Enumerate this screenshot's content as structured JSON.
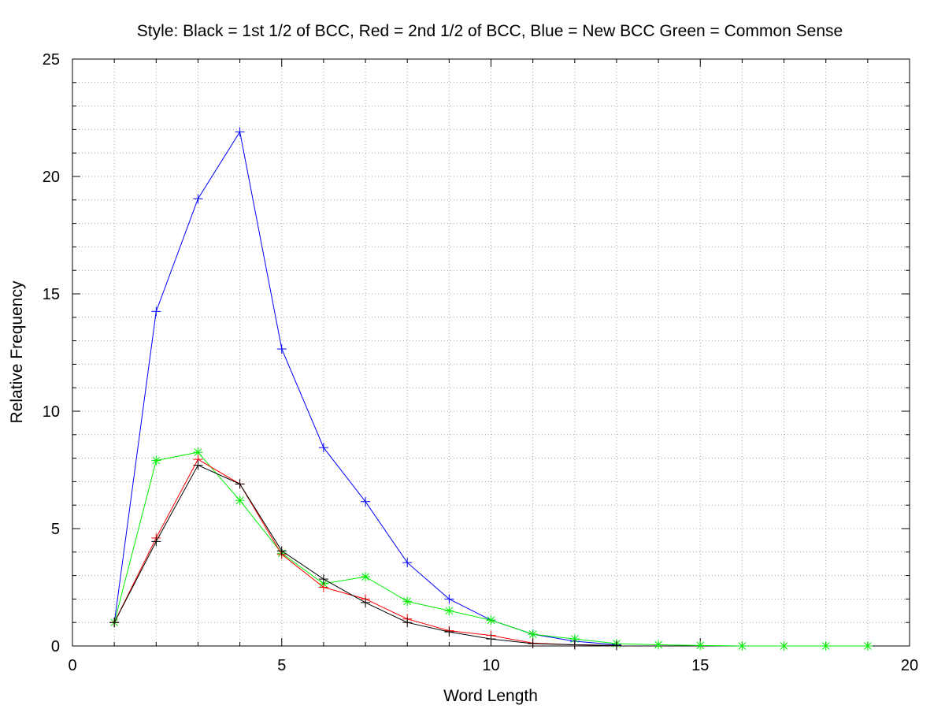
{
  "chart_data": {
    "type": "line",
    "title": "Style: Black = 1st 1/2 of BCC, Red = 2nd 1/2 of BCC, Blue = New BCC Green = Common Sense",
    "xlabel": "Word Length",
    "ylabel": "Relative Frequency",
    "xlim": [
      0,
      20
    ],
    "ylim": [
      0,
      25
    ],
    "xticks": [
      "0",
      "5",
      "10",
      "15",
      "20"
    ],
    "yticks": [
      "0",
      "5",
      "10",
      "15",
      "20",
      "25"
    ],
    "grid": true,
    "legend": "none",
    "series": [
      {
        "color": "#0000ff",
        "marker": "plus",
        "x": [
          1,
          2,
          3,
          4,
          5,
          6,
          7,
          8,
          9,
          10,
          11,
          12,
          13
        ],
        "values": [
          1.0,
          14.25,
          19.05,
          21.9,
          12.65,
          8.45,
          6.15,
          3.55,
          2.0,
          1.1,
          0.5,
          0.2,
          0.05
        ]
      },
      {
        "color": "#00ee00",
        "marker": "star",
        "x": [
          1,
          2,
          3,
          4,
          5,
          6,
          7,
          8,
          9,
          10,
          11,
          12,
          13,
          14,
          15,
          16,
          17,
          18,
          19
        ],
        "values": [
          1.0,
          7.9,
          8.25,
          6.2,
          3.95,
          2.65,
          2.95,
          1.9,
          1.5,
          1.1,
          0.5,
          0.3,
          0.1,
          0.05,
          0.02,
          0.0,
          0.0,
          0.0,
          0.0
        ]
      },
      {
        "color": "#ff0000",
        "marker": "plus",
        "x": [
          1,
          2,
          3,
          4,
          5,
          6,
          7,
          8,
          9,
          10,
          11,
          12,
          13
        ],
        "values": [
          1.0,
          4.6,
          7.95,
          6.9,
          3.9,
          2.5,
          2.0,
          1.15,
          0.65,
          0.45,
          0.12,
          0.05,
          0.02
        ]
      },
      {
        "color": "#000000",
        "marker": "plus",
        "x": [
          1,
          2,
          3,
          4,
          5,
          6,
          7,
          8,
          9,
          10,
          11,
          12,
          13
        ],
        "values": [
          1.0,
          4.45,
          7.7,
          6.9,
          4.05,
          2.85,
          1.85,
          1.0,
          0.6,
          0.3,
          0.1,
          0.05,
          0.02
        ]
      }
    ]
  }
}
